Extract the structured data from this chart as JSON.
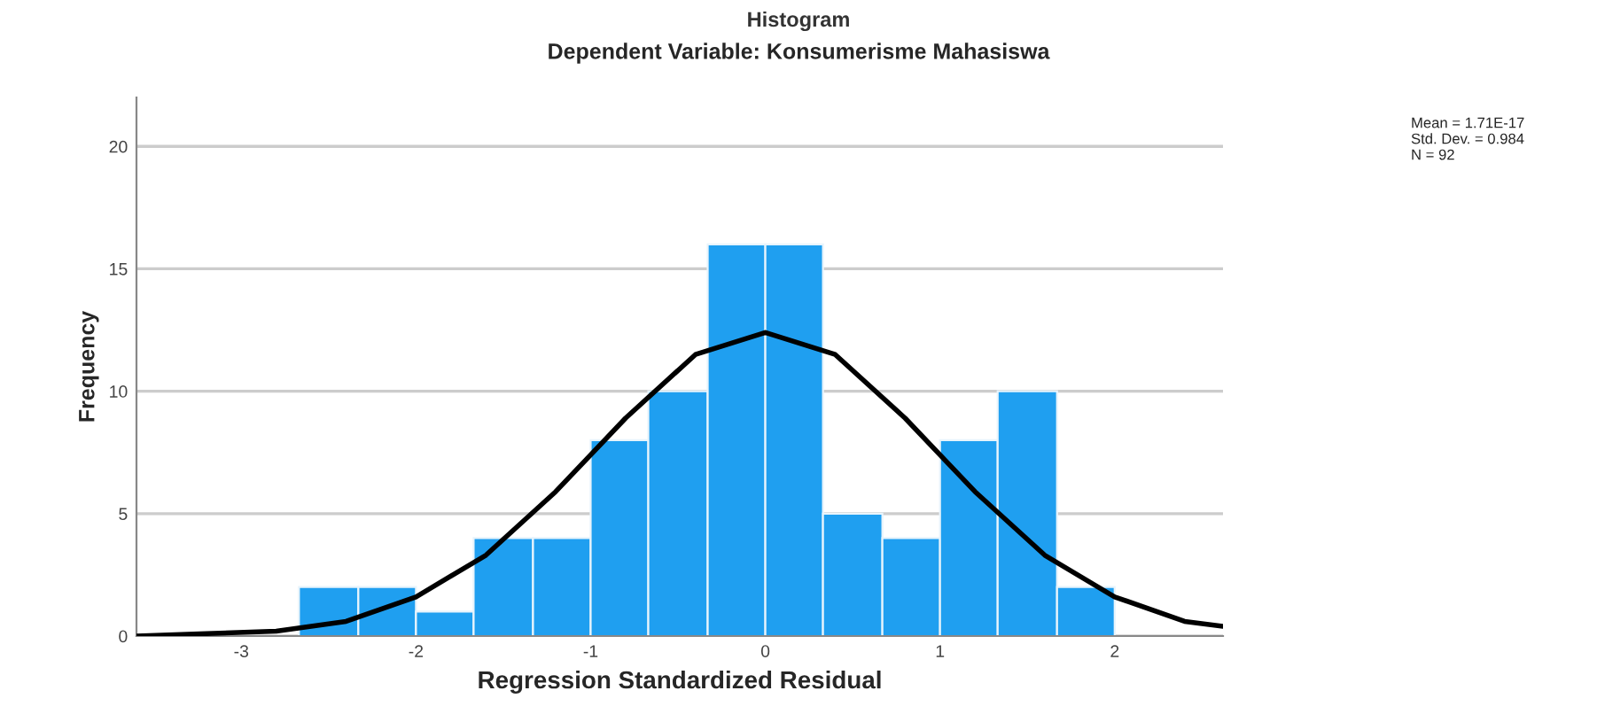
{
  "chart_data": {
    "type": "histogram",
    "title": "Histogram",
    "subtitle": "Dependent Variable: Konsumerisme Mahasiswa",
    "xlabel": "Regression Standardized Residual",
    "ylabel": "Frequency",
    "bins": [
      -2.67,
      -2.33,
      -2,
      -1.67,
      -1.33,
      -1,
      -0.67,
      -0.33,
      0,
      0.33,
      0.67,
      1,
      1.33,
      1.67,
      2
    ],
    "values": [
      2,
      2,
      1,
      4,
      4,
      8,
      10,
      16,
      16,
      5,
      4,
      8,
      10,
      2
    ],
    "color": "#1f9ff0",
    "series": [
      {
        "type": "line",
        "color": "#000000",
        "x": [
          -3.6,
          -3.2,
          -2.8,
          -2.4,
          -2.0,
          -1.6,
          -1.2,
          -0.8,
          -0.4,
          0,
          0.4,
          0.8,
          1.2,
          1.6,
          2.0,
          2.4,
          2.62
        ],
        "values": [
          0.0,
          0.1,
          0.2,
          0.6,
          1.6,
          3.3,
          5.9,
          8.9,
          11.5,
          12.4,
          11.5,
          8.9,
          5.9,
          3.3,
          1.6,
          0.6,
          0.4
        ]
      }
    ],
    "xlim": [
      -3.6,
      2.62
    ],
    "xticks": [
      -3,
      -2,
      -1,
      0,
      1,
      2
    ],
    "ylim": [
      0,
      22
    ],
    "yticks": [
      0,
      5,
      10,
      15,
      20
    ],
    "grid": "y",
    "annotations": [
      "Mean = 1.71E-17",
      "Std. Dev. = 0.984",
      "N = 92"
    ]
  }
}
